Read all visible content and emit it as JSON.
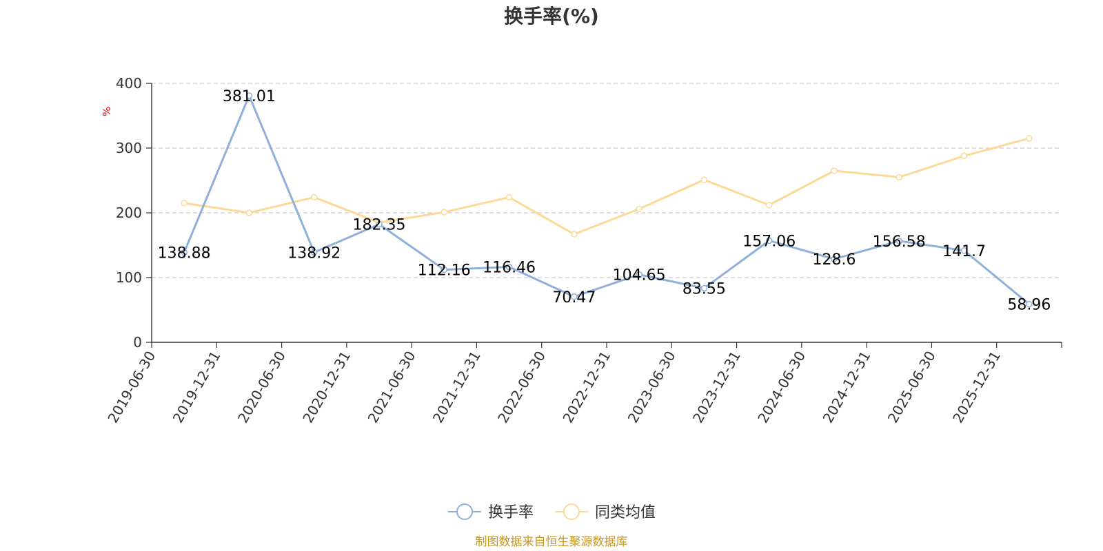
{
  "chart_data": {
    "type": "line",
    "title": "换手率(%)",
    "ylabel": "%",
    "xlabel": "",
    "ylim": [
      0,
      400
    ],
    "yticks": [
      0,
      100,
      200,
      300,
      400
    ],
    "grid": true,
    "categories": [
      "2019-06-30",
      "2019-12-31",
      "2020-06-30",
      "2020-12-31",
      "2021-06-30",
      "2021-12-31",
      "2022-06-30",
      "2022-12-31",
      "2023-06-30",
      "2023-12-31",
      "2024-06-30",
      "2024-12-31",
      "2025-06-30",
      "2025-12-31"
    ],
    "series": [
      {
        "name": "换手率",
        "color": "#8eb0d9",
        "values": [
          138.88,
          381.01,
          138.92,
          182.35,
          112.16,
          116.46,
          70.47,
          104.65,
          83.55,
          157.06,
          128.6,
          156.58,
          141.7,
          58.96
        ],
        "labels": [
          "138.88",
          "381.01",
          "138.92",
          "182.35",
          "112.16",
          "116.46",
          "70.47",
          "104.65",
          "83.55",
          "157.06",
          "128.6",
          "156.58",
          "141.7",
          "58.96"
        ],
        "show_labels": true
      },
      {
        "name": "同类均值",
        "color": "#fcd996",
        "values": [
          215,
          200,
          224,
          185,
          201,
          224,
          167,
          206,
          251,
          212,
          265,
          255,
          288,
          315
        ],
        "show_labels": false
      }
    ],
    "legend_position": "bottom-center"
  },
  "footer": {
    "source": "制图数据来自恒生聚源数据库"
  }
}
